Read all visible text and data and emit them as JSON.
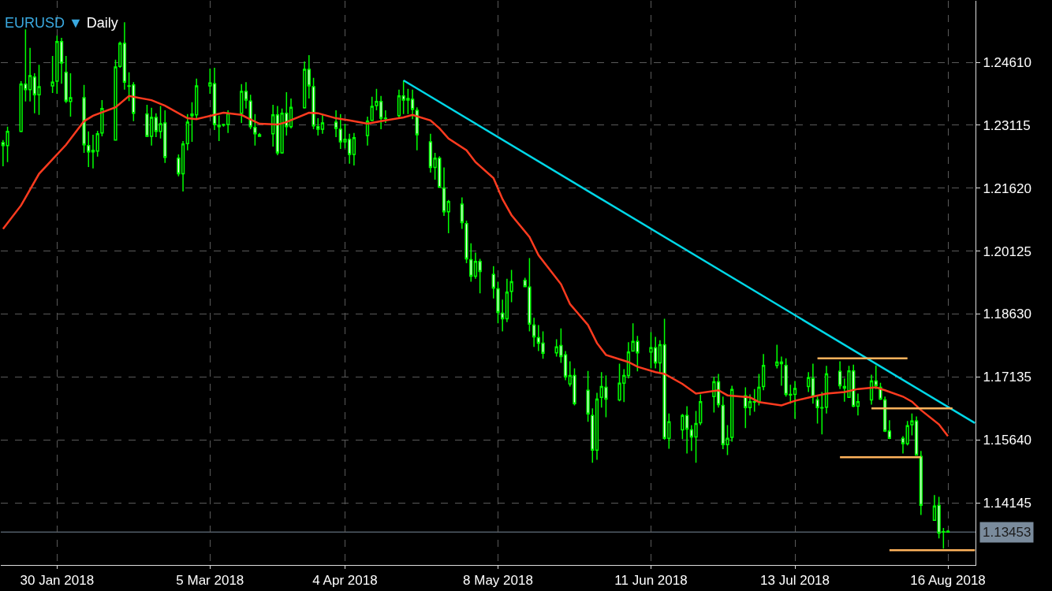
{
  "chart_data": {
    "type": "candlestick",
    "title": "EURUSD ▼",
    "subtitle": "Daily",
    "color": "#00ff00",
    "x": [
      "2018-01-18",
      "2018-01-19",
      "2018-01-22",
      "2018-01-23",
      "2018-01-24",
      "2018-01-25",
      "2018-01-26",
      "2018-01-29",
      "2018-01-30",
      "2018-01-31",
      "2018-02-01",
      "2018-02-02",
      "2018-02-05",
      "2018-02-06",
      "2018-02-07",
      "2018-02-08",
      "2018-02-09",
      "2018-02-12",
      "2018-02-13",
      "2018-02-14",
      "2018-02-15",
      "2018-02-16",
      "2018-02-19",
      "2018-02-20",
      "2018-02-21",
      "2018-02-22",
      "2018-02-23",
      "2018-02-26",
      "2018-02-27",
      "2018-02-28",
      "2018-03-01",
      "2018-03-02",
      "2018-03-05",
      "2018-03-06",
      "2018-03-07",
      "2018-03-08",
      "2018-03-09",
      "2018-03-12",
      "2018-03-13",
      "2018-03-14",
      "2018-03-15",
      "2018-03-16",
      "2018-03-19",
      "2018-03-20",
      "2018-03-21",
      "2018-03-22",
      "2018-03-23",
      "2018-03-26",
      "2018-03-27",
      "2018-03-28",
      "2018-03-29",
      "2018-03-30",
      "2018-04-02",
      "2018-04-03",
      "2018-04-04",
      "2018-04-05",
      "2018-04-06",
      "2018-04-09",
      "2018-04-10",
      "2018-04-11",
      "2018-04-12",
      "2018-04-13",
      "2018-04-16",
      "2018-04-17",
      "2018-04-18",
      "2018-04-19",
      "2018-04-20",
      "2018-04-23",
      "2018-04-24",
      "2018-04-25",
      "2018-04-26",
      "2018-04-27",
      "2018-04-30",
      "2018-05-01",
      "2018-05-02",
      "2018-05-03",
      "2018-05-04",
      "2018-05-07",
      "2018-05-08",
      "2018-05-09",
      "2018-05-10",
      "2018-05-11",
      "2018-05-14",
      "2018-05-15",
      "2018-05-16",
      "2018-05-17",
      "2018-05-18",
      "2018-05-21",
      "2018-05-22",
      "2018-05-23",
      "2018-05-24",
      "2018-05-25",
      "2018-05-28",
      "2018-05-29",
      "2018-05-30",
      "2018-05-31",
      "2018-06-01",
      "2018-06-04",
      "2018-06-05",
      "2018-06-06",
      "2018-06-07",
      "2018-06-08",
      "2018-06-11",
      "2018-06-12",
      "2018-06-13",
      "2018-06-14",
      "2018-06-15",
      "2018-06-18",
      "2018-06-19",
      "2018-06-20",
      "2018-06-21",
      "2018-06-22",
      "2018-06-25",
      "2018-06-26",
      "2018-06-27",
      "2018-06-28",
      "2018-06-29",
      "2018-07-02",
      "2018-07-03",
      "2018-07-04",
      "2018-07-05",
      "2018-07-06",
      "2018-07-09",
      "2018-07-10",
      "2018-07-11",
      "2018-07-12",
      "2018-07-13",
      "2018-07-16",
      "2018-07-17",
      "2018-07-18",
      "2018-07-19",
      "2018-07-20",
      "2018-07-23",
      "2018-07-24",
      "2018-07-25",
      "2018-07-26",
      "2018-07-27",
      "2018-07-30",
      "2018-07-31",
      "2018-08-01",
      "2018-08-02",
      "2018-08-03",
      "2018-08-06",
      "2018-08-07",
      "2018-08-08",
      "2018-08-09",
      "2018-08-10",
      "2018-08-13",
      "2018-08-14",
      "2018-08-15",
      "2018-08-16"
    ],
    "ohlc": [
      [
        1.227,
        1.2276,
        1.2214,
        1.2263
      ],
      [
        1.2263,
        1.2308,
        1.2224,
        1.2297
      ],
      [
        1.2297,
        1.2416,
        1.2295,
        1.2409
      ],
      [
        1.2409,
        1.2539,
        1.2368,
        1.2396
      ],
      [
        1.2396,
        1.2495,
        1.2368,
        1.2429
      ],
      [
        1.2426,
        1.2435,
        1.234,
        1.2384
      ],
      [
        1.2384,
        1.2455,
        1.2336,
        1.2403
      ],
      [
        1.2405,
        1.2476,
        1.2388,
        1.2414
      ],
      [
        1.2416,
        1.2524,
        1.2386,
        1.251
      ],
      [
        1.251,
        1.2519,
        1.241,
        1.2459
      ],
      [
        1.2437,
        1.2476,
        1.2364,
        1.2369
      ],
      [
        1.2368,
        1.2435,
        1.2332,
        1.2377
      ],
      [
        1.2377,
        1.2407,
        1.2246,
        1.2265
      ],
      [
        1.2263,
        1.2297,
        1.2212,
        1.2248
      ],
      [
        1.2248,
        1.2289,
        1.2209,
        1.2252
      ],
      [
        1.225,
        1.2298,
        1.2237,
        1.2291
      ],
      [
        1.2293,
        1.2371,
        1.2285,
        1.2351
      ],
      [
        1.2276,
        1.2467,
        1.2276,
        1.245
      ],
      [
        1.2451,
        1.251,
        1.2448,
        1.2506
      ],
      [
        1.2506,
        1.2556,
        1.2396,
        1.2414
      ],
      [
        1.2405,
        1.2437,
        1.2369,
        1.2404
      ],
      [
        1.2407,
        1.2414,
        1.2321,
        1.234
      ],
      [
        1.2338,
        1.236,
        1.2283,
        1.2285
      ],
      [
        1.2285,
        1.2353,
        1.2263,
        1.233
      ],
      [
        1.233,
        1.234,
        1.2283,
        1.2297
      ],
      [
        1.2297,
        1.2357,
        1.228,
        1.2315
      ],
      [
        1.2317,
        1.2347,
        1.2222,
        1.2235
      ],
      [
        1.2233,
        1.2242,
        1.219,
        1.2196
      ],
      [
        1.2196,
        1.2274,
        1.2154,
        1.2267
      ],
      [
        1.2268,
        1.2338,
        1.2252,
        1.2319
      ],
      [
        1.2334,
        1.2366,
        1.2272,
        1.2338
      ],
      [
        1.2336,
        1.2422,
        1.2328,
        1.2405
      ],
      [
        1.2405,
        1.2446,
        1.2386,
        1.2412
      ],
      [
        1.241,
        1.2448,
        1.23,
        1.2313
      ],
      [
        1.2311,
        1.2334,
        1.2274,
        1.2308
      ],
      [
        1.2313,
        1.2315,
        1.2308,
        1.2312
      ],
      [
        1.2313,
        1.2347,
        1.2293,
        1.234
      ],
      [
        1.234,
        1.2409,
        1.2317,
        1.2392
      ],
      [
        1.2392,
        1.2414,
        1.2351,
        1.2371
      ],
      [
        1.2369,
        1.2384,
        1.2302,
        1.2308
      ],
      [
        1.2306,
        1.2338,
        1.2263,
        1.2291
      ],
      [
        1.2289,
        1.2293,
        1.2285,
        1.2285
      ],
      [
        1.2291,
        1.236,
        1.2261,
        1.2336
      ],
      [
        1.2336,
        1.2357,
        1.224,
        1.2246
      ],
      [
        1.2246,
        1.2351,
        1.2244,
        1.234
      ],
      [
        1.234,
        1.239,
        1.2287,
        1.2308
      ],
      [
        1.2308,
        1.2375,
        1.2304,
        1.2354
      ],
      [
        1.2353,
        1.2463,
        1.2351,
        1.2444
      ],
      [
        1.2444,
        1.2478,
        1.2375,
        1.2405
      ],
      [
        1.2403,
        1.2424,
        1.2302,
        1.231
      ],
      [
        1.2308,
        1.2328,
        1.2287,
        1.2302
      ],
      [
        1.2302,
        1.2336,
        1.2291,
        1.2317
      ],
      [
        1.2319,
        1.2347,
        1.2283,
        1.2304
      ],
      [
        1.2302,
        1.2338,
        1.2255,
        1.2272
      ],
      [
        1.2272,
        1.2315,
        1.2257,
        1.2278
      ],
      [
        1.2278,
        1.2291,
        1.222,
        1.2242
      ],
      [
        1.2242,
        1.2293,
        1.2216,
        1.2282
      ],
      [
        1.2287,
        1.2332,
        1.2263,
        1.2321
      ],
      [
        1.2323,
        1.2379,
        1.2321,
        1.2356
      ],
      [
        1.2358,
        1.2398,
        1.2347,
        1.2368
      ],
      [
        1.2368,
        1.2381,
        1.2302,
        1.2328
      ],
      [
        1.2328,
        1.2347,
        1.2317,
        1.2327
      ],
      [
        1.2334,
        1.2396,
        1.233,
        1.2381
      ],
      [
        1.2381,
        1.2418,
        1.2338,
        1.2371
      ],
      [
        1.2375,
        1.2398,
        1.2338,
        1.2371
      ],
      [
        1.2373,
        1.2396,
        1.2326,
        1.2349
      ],
      [
        1.2347,
        1.2354,
        1.2252,
        1.2289
      ],
      [
        1.2272,
        1.2291,
        1.2199,
        1.2211
      ],
      [
        1.2211,
        1.2246,
        1.2182,
        1.2233
      ],
      [
        1.2233,
        1.2238,
        1.2164,
        1.2164
      ],
      [
        1.2162,
        1.2211,
        1.2096,
        1.2106
      ],
      [
        1.2106,
        1.2134,
        1.2055,
        1.213
      ],
      [
        1.2124,
        1.214,
        1.2065,
        1.208
      ],
      [
        1.2078,
        1.2085,
        1.1984,
        1.1994
      ],
      [
        1.1992,
        1.2031,
        1.194,
        1.1953
      ],
      [
        1.1953,
        1.2009,
        1.1947,
        1.1988
      ],
      [
        1.1988,
        1.1994,
        1.1912,
        1.1964
      ],
      [
        1.1957,
        1.1977,
        1.19,
        1.1925
      ],
      [
        1.1923,
        1.194,
        1.1841,
        1.1867
      ],
      [
        1.1865,
        1.1897,
        1.1822,
        1.1852
      ],
      [
        1.1852,
        1.1947,
        1.1844,
        1.1915
      ],
      [
        1.1917,
        1.1968,
        1.1891,
        1.194
      ],
      [
        1.1943,
        1.1949,
        1.1927,
        1.1928
      ],
      [
        1.1927,
        1.1996,
        1.1822,
        1.1839
      ],
      [
        1.1837,
        1.1854,
        1.1785,
        1.1809
      ],
      [
        1.1807,
        1.1837,
        1.1775,
        1.1794
      ],
      [
        1.1794,
        1.1822,
        1.1757,
        1.177
      ],
      [
        1.1771,
        1.1803,
        1.1762,
        1.1785
      ],
      [
        1.1788,
        1.1829,
        1.1747,
        1.1762
      ],
      [
        1.1766,
        1.1775,
        1.1706,
        1.1714
      ],
      [
        1.1697,
        1.1751,
        1.1691,
        1.1717
      ],
      [
        1.1717,
        1.1734,
        1.1646,
        1.165
      ],
      [
        1.1682,
        1.1728,
        1.1607,
        1.1626
      ],
      [
        1.1622,
        1.1639,
        1.151,
        1.154
      ],
      [
        1.154,
        1.1676,
        1.1517,
        1.1661
      ],
      [
        1.1665,
        1.1725,
        1.1641,
        1.1691
      ],
      [
        1.1689,
        1.1717,
        1.1618,
        1.1661
      ],
      [
        1.1659,
        1.1745,
        1.1656,
        1.1699
      ],
      [
        1.1699,
        1.1732,
        1.1654,
        1.1717
      ],
      [
        1.1717,
        1.1796,
        1.171,
        1.1773
      ],
      [
        1.1775,
        1.1841,
        1.1775,
        1.1798
      ],
      [
        1.1798,
        1.1811,
        1.1727,
        1.1771
      ],
      [
        1.1773,
        1.182,
        1.1734,
        1.1783
      ],
      [
        1.1783,
        1.1809,
        1.1734,
        1.1747
      ],
      [
        1.1747,
        1.1801,
        1.1725,
        1.179
      ],
      [
        1.179,
        1.1852,
        1.1564,
        1.1568
      ],
      [
        1.1568,
        1.1627,
        1.1543,
        1.1607
      ],
      [
        1.1588,
        1.1626,
        1.1566,
        1.1622
      ],
      [
        1.1622,
        1.1644,
        1.1532,
        1.159
      ],
      [
        1.1588,
        1.1599,
        1.1538,
        1.1571
      ],
      [
        1.1571,
        1.1633,
        1.151,
        1.1603
      ],
      [
        1.1605,
        1.1672,
        1.1599,
        1.1655
      ],
      [
        1.1667,
        1.1714,
        1.1629,
        1.1702
      ],
      [
        1.1702,
        1.1721,
        1.1641,
        1.1648
      ],
      [
        1.1646,
        1.1667,
        1.1542,
        1.1553
      ],
      [
        1.1553,
        1.1599,
        1.1528,
        1.1568
      ],
      [
        1.157,
        1.1693,
        1.156,
        1.1684
      ],
      [
        1.1669,
        1.1689,
        1.1592,
        1.1641
      ],
      [
        1.1641,
        1.1672,
        1.1622,
        1.1655
      ],
      [
        1.1655,
        1.1685,
        1.1631,
        1.1654
      ],
      [
        1.1655,
        1.1721,
        1.1646,
        1.1689
      ],
      [
        1.1691,
        1.1768,
        1.1682,
        1.1741
      ],
      [
        1.1741,
        1.179,
        1.1734,
        1.1749
      ],
      [
        1.1749,
        1.1762,
        1.1693,
        1.1745
      ],
      [
        1.1741,
        1.1758,
        1.1667,
        1.1672
      ],
      [
        1.1672,
        1.1695,
        1.165,
        1.1671
      ],
      [
        1.1672,
        1.1704,
        1.1614,
        1.1686
      ],
      [
        1.1691,
        1.1725,
        1.1678,
        1.1712
      ],
      [
        1.171,
        1.1745,
        1.165,
        1.1667
      ],
      [
        1.1659,
        1.1667,
        1.1603,
        1.1641
      ],
      [
        1.1641,
        1.1678,
        1.1577,
        1.164
      ],
      [
        1.1642,
        1.174,
        1.1627,
        1.1721
      ],
      [
        1.1727,
        1.1751,
        1.1685,
        1.1693
      ],
      [
        1.1691,
        1.171,
        1.1655,
        1.1687
      ],
      [
        1.1665,
        1.174,
        1.1665,
        1.1728
      ],
      [
        1.1728,
        1.1743,
        1.1642,
        1.1644
      ],
      [
        1.1644,
        1.1674,
        1.1622,
        1.1655
      ],
      [
        1.1659,
        1.1719,
        1.1648,
        1.1704
      ],
      [
        1.1704,
        1.1741,
        1.1685,
        1.1693
      ],
      [
        1.1689,
        1.17,
        1.1659,
        1.1661
      ],
      [
        1.1659,
        1.1667,
        1.1583,
        1.1585
      ],
      [
        1.1585,
        1.1611,
        1.1566,
        1.1568
      ],
      [
        1.1568,
        1.1573,
        1.1532,
        1.1555
      ],
      [
        1.1555,
        1.1609,
        1.1551,
        1.1598
      ],
      [
        1.16,
        1.1627,
        1.1575,
        1.1609
      ],
      [
        1.1609,
        1.162,
        1.1528,
        1.1528
      ],
      [
        1.1525,
        1.1538,
        1.1386,
        1.1409
      ],
      [
        1.1373,
        1.1433,
        1.1373,
        1.1407
      ],
      [
        1.1409,
        1.1429,
        1.133,
        1.1343
      ],
      [
        1.1345,
        1.1355,
        1.1306,
        1.1346
      ],
      [
        1.1347,
        1.135,
        1.1344,
        1.13453
      ]
    ],
    "series": [
      {
        "type": "line",
        "color": "#ff3b1f",
        "x": [
          "2018-01-18",
          "2018-01-22",
          "2018-01-26",
          "2018-02-01",
          "2018-02-05",
          "2018-02-07",
          "2018-02-12",
          "2018-02-15",
          "2018-02-20",
          "2018-02-23",
          "2018-02-28",
          "2018-03-02",
          "2018-03-06",
          "2018-03-08",
          "2018-03-12",
          "2018-03-14",
          "2018-03-16",
          "2018-03-20",
          "2018-03-22",
          "2018-03-27",
          "2018-03-29",
          "2018-04-02",
          "2018-04-05",
          "2018-04-09",
          "2018-04-12",
          "2018-04-17",
          "2018-04-19",
          "2018-04-23",
          "2018-04-25",
          "2018-04-27",
          "2018-05-01",
          "2018-05-03",
          "2018-05-07",
          "2018-05-09",
          "2018-05-11",
          "2018-05-15",
          "2018-05-17",
          "2018-05-22",
          "2018-05-24",
          "2018-05-28",
          "2018-05-30",
          "2018-06-01",
          "2018-06-06",
          "2018-06-08",
          "2018-06-12",
          "2018-06-14",
          "2018-06-18",
          "2018-06-21",
          "2018-06-26",
          "2018-06-28",
          "2018-07-03",
          "2018-07-05",
          "2018-07-10",
          "2018-07-13",
          "2018-07-17",
          "2018-07-20",
          "2018-07-24",
          "2018-07-27",
          "2018-07-31",
          "2018-08-02",
          "2018-08-06",
          "2018-08-08",
          "2018-08-10",
          "2018-08-14",
          "2018-08-16"
        ],
        "values": [
          1.2065,
          1.2121,
          1.2196,
          1.2265,
          1.2321,
          1.2334,
          1.2354,
          1.2381,
          1.2371,
          1.2358,
          1.2328,
          1.2326,
          1.2336,
          1.2341,
          1.2336,
          1.2325,
          1.2315,
          1.2313,
          1.2319,
          1.2341,
          1.234,
          1.2328,
          1.2323,
          1.2315,
          1.2321,
          1.233,
          1.2336,
          1.2323,
          1.2304,
          1.228,
          1.2252,
          1.2224,
          1.2186,
          1.2136,
          1.2098,
          1.2046,
          1.2003,
          1.1934,
          1.1887,
          1.1837,
          1.1794,
          1.1766,
          1.1749,
          1.1738,
          1.1725,
          1.1721,
          1.1697,
          1.1674,
          1.1682,
          1.167,
          1.1665,
          1.1654,
          1.1646,
          1.1657,
          1.1667,
          1.1674,
          1.1678,
          1.1685,
          1.1689,
          1.1682,
          1.1667,
          1.1655,
          1.1635,
          1.1601,
          1.1573
        ]
      },
      {
        "type": "line",
        "color": "#00d8e8",
        "x": [
          "2018-04-17",
          "2018-08-22"
        ],
        "values": [
          1.2418,
          1.1604
        ]
      },
      {
        "type": "line",
        "color": "#ffb35c",
        "x": [
          "2018-07-18",
          "2018-08-07"
        ],
        "values": [
          1.1758,
          1.1758
        ]
      },
      {
        "type": "line",
        "color": "#ffb35c",
        "x": [
          "2018-07-30",
          "2018-08-17"
        ],
        "values": [
          1.1639,
          1.1639
        ]
      },
      {
        "type": "line",
        "color": "#ffb35c",
        "x": [
          "2018-07-23",
          "2018-08-10"
        ],
        "values": [
          1.1523,
          1.1523
        ]
      },
      {
        "type": "line",
        "color": "#ffb35c",
        "x": [
          "2018-08-03",
          "2018-08-22"
        ],
        "values": [
          1.1302,
          1.1302
        ]
      }
    ],
    "ref_lines": [
      {
        "axis": "y",
        "value": 1.13453,
        "label": "1.13453",
        "color": "#7a8b9c"
      }
    ],
    "xlim": [
      "2018-01-17T12:00",
      "2018-08-22T03:00"
    ],
    "xticks": [
      {
        "value": "2018-01-30",
        "label": "30 Jan 2018"
      },
      {
        "value": "2018-03-05",
        "label": "5 Mar 2018"
      },
      {
        "value": "2018-04-04",
        "label": "4 Apr 2018"
      },
      {
        "value": "2018-05-08",
        "label": "8 May 2018"
      },
      {
        "value": "2018-06-11",
        "label": "11 Jun 2018"
      },
      {
        "value": "2018-07-13",
        "label": "13 Jul 2018"
      },
      {
        "value": "2018-08-16",
        "label": "16 Aug 2018"
      }
    ],
    "ylim": [
      1.1267,
      1.2607
    ],
    "yticks": [
      {
        "value": 1.2461,
        "label": "1.24610"
      },
      {
        "value": 1.23115,
        "label": "1.23115"
      },
      {
        "value": 1.2162,
        "label": "1.21620"
      },
      {
        "value": 1.20125,
        "label": "1.20125"
      },
      {
        "value": 1.1863,
        "label": "1.18630"
      },
      {
        "value": 1.17135,
        "label": "1.17135"
      },
      {
        "value": 1.1564,
        "label": "1.15640"
      },
      {
        "value": 1.14145,
        "label": "1.14145"
      }
    ],
    "grid": true
  }
}
